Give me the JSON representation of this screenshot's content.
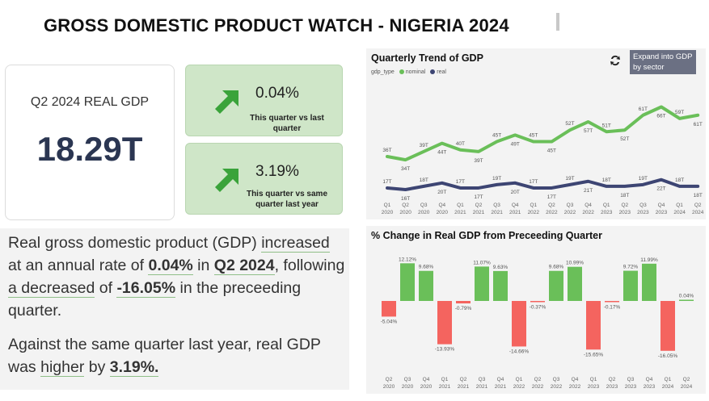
{
  "header": {
    "title": "GROSS DOMESTIC PRODUCT WATCH - NIGERIA 2024"
  },
  "kpi": {
    "label": "Q2 2024 REAL GDP",
    "value": "18.29T"
  },
  "cards": [
    {
      "pct": "0.04%",
      "sub": "This quarter vs last quarter",
      "icon": "up-right-arrow-icon"
    },
    {
      "pct": "3.19%",
      "sub": "This quarter vs same quarter last year",
      "icon": "up-right-arrow-icon"
    }
  ],
  "narrative": {
    "p1": {
      "t1": "Real gross domestic product (GDP) ",
      "u1": "increased",
      "t2": " at an annual rate of ",
      "b1": "0.04%",
      "t3": " in ",
      "b2": "Q2 2024",
      "t4": ", following ",
      "u2": "a decreased",
      "t5": " of ",
      "b3": "-16.05%",
      "t6": " in the preceeding quarter."
    },
    "p2": {
      "t1": "Against the same quarter last year, real GDP was ",
      "u1": "higher",
      "t2": " by ",
      "b1": "3.19%."
    }
  },
  "trend_panel": {
    "title": "Quarterly Trend of GDP",
    "legend_label": "gdp_type",
    "expand_tooltip": "Expand into GDP by sector"
  },
  "change_panel": {
    "title": "% Change in Real GDP from Preceeding Quarter"
  },
  "colors": {
    "nominal": "#6abf59",
    "real": "#3d4573",
    "positive": "#6abf59",
    "negative": "#f4645f",
    "card_green": "#cfe6c8"
  },
  "chart_data": [
    {
      "type": "line",
      "title": "Quarterly Trend of GDP",
      "x": [
        "Q1 2020",
        "Q2 2020",
        "Q3 2020",
        "Q4 2020",
        "Q1 2021",
        "Q2 2021",
        "Q3 2021",
        "Q4 2021",
        "Q1 2022",
        "Q2 2022",
        "Q3 2022",
        "Q4 2022",
        "Q1 2023",
        "Q2 2023",
        "Q3 2023",
        "Q4 2023",
        "Q1 2024",
        "Q2 2024"
      ],
      "legend_title": "gdp_type",
      "series": [
        {
          "name": "nominal",
          "values": [
            36,
            34,
            39,
            44,
            40,
            39,
            45,
            49,
            45,
            45,
            52,
            57,
            51,
            52,
            61,
            66,
            59,
            61
          ],
          "labels": [
            "36T",
            "34T",
            "39T",
            "44T",
            "40T",
            "39T",
            "45T",
            "49T",
            "45T",
            "45T",
            "52T",
            "57T",
            "51T",
            "52T",
            "61T",
            "66T",
            "59T",
            "61T"
          ]
        },
        {
          "name": "real",
          "values": [
            17,
            16,
            18,
            20,
            17,
            17,
            19,
            20,
            17,
            17,
            19,
            21,
            18,
            18,
            19,
            22,
            18,
            18
          ],
          "labels": [
            "17T",
            "16T",
            "18T",
            "20T",
            "17T",
            "17T",
            "19T",
            "20T",
            "17T",
            "17T",
            "19T",
            "21T",
            "18T",
            "18T",
            "19T",
            "22T",
            "18T",
            "18T"
          ]
        }
      ],
      "legend": "top-left"
    },
    {
      "type": "bar",
      "title": "% Change in Real GDP from Preceeding Quarter",
      "categories": [
        "Q2 2020",
        "Q3 2020",
        "Q4 2020",
        "Q1 2021",
        "Q2 2021",
        "Q3 2021",
        "Q4 2021",
        "Q1 2022",
        "Q2 2022",
        "Q3 2022",
        "Q4 2022",
        "Q1 2023",
        "Q2 2023",
        "Q3 2023",
        "Q4 2023",
        "Q1 2024",
        "Q2 2024"
      ],
      "values": [
        -5.04,
        12.12,
        9.68,
        -13.93,
        -0.79,
        11.07,
        9.63,
        -14.66,
        -0.37,
        9.68,
        10.99,
        -15.65,
        -0.17,
        9.72,
        11.99,
        -16.05,
        0.04
      ],
      "labels": [
        "-5.04%",
        "12.12%",
        "9.68%",
        "-13.93%",
        "-0.79%",
        "11.07%",
        "9.63%",
        "-14.66%",
        "-0.37%",
        "9.68%",
        "10.99%",
        "-15.65%",
        "-0.17%",
        "9.72%",
        "11.99%",
        "-16.05%",
        "0.04%"
      ]
    }
  ]
}
